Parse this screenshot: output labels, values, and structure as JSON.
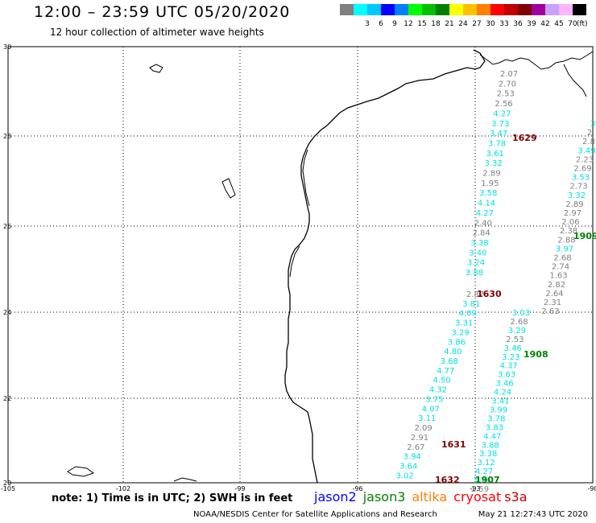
{
  "header": {
    "title": "12:00 – 23:59 UTC 05/20/2020",
    "subtitle": "12 hour collection of altimeter wave heights"
  },
  "legend": {
    "unit": "(ft)",
    "entries": [
      {
        "label": "",
        "color": "#808080"
      },
      {
        "label": "3",
        "color": "#00ffff"
      },
      {
        "label": "6",
        "color": "#00c8ff"
      },
      {
        "label": "9",
        "color": "#0000ff"
      },
      {
        "label": "12",
        "color": "#0080ff"
      },
      {
        "label": "15",
        "color": "#00ff00"
      },
      {
        "label": "18",
        "color": "#00c000"
      },
      {
        "label": "21",
        "color": "#008000"
      },
      {
        "label": "24",
        "color": "#ffff00"
      },
      {
        "label": "27",
        "color": "#ffc000"
      },
      {
        "label": "30",
        "color": "#ff8000"
      },
      {
        "label": "33",
        "color": "#ff0000"
      },
      {
        "label": "36",
        "color": "#c00000"
      },
      {
        "label": "39",
        "color": "#800000"
      },
      {
        "label": "42",
        "color": "#a000a0"
      },
      {
        "label": "45",
        "color": "#c8a0ff"
      },
      {
        "label": "70",
        "color": "#ffb4ff"
      },
      {
        "label": "",
        "color": "#000000"
      }
    ]
  },
  "map": {
    "lat_labels": [
      "30",
      "28",
      "26",
      "24",
      "22",
      "20"
    ],
    "lon_labels": [
      "-105",
      "-102",
      "-99",
      "-96",
      "-93",
      "-90"
    ]
  },
  "tracks": [
    {
      "time": "1629",
      "time_color": "#800000",
      "points": [
        {
          "v": "2.07",
          "c": "#808080"
        },
        {
          "v": "2.70",
          "c": "#808080"
        },
        {
          "v": "2.53",
          "c": "#808080"
        },
        {
          "v": "2.56",
          "c": "#808080"
        },
        {
          "v": "4.27",
          "c": "#00e0e0"
        },
        {
          "v": "3.73",
          "c": "#00e0e0"
        },
        {
          "v": "3.47",
          "c": "#00e0e0"
        },
        {
          "v": "3.78",
          "c": "#00e0e0"
        },
        {
          "v": "3.61",
          "c": "#00e0e0"
        },
        {
          "v": "3.32",
          "c": "#00e0e0"
        },
        {
          "v": "2.89",
          "c": "#808080"
        },
        {
          "v": "1.95",
          "c": "#808080"
        },
        {
          "v": "3.58",
          "c": "#00e0e0"
        },
        {
          "v": "4.14",
          "c": "#00e0e0"
        },
        {
          "v": "4.27",
          "c": "#00e0e0"
        },
        {
          "v": "2.40",
          "c": "#808080"
        },
        {
          "v": "2.84",
          "c": "#808080"
        },
        {
          "v": "3.38",
          "c": "#00e0e0"
        },
        {
          "v": "3.40",
          "c": "#00e0e0"
        },
        {
          "v": "3.24",
          "c": "#00e0e0"
        },
        {
          "v": "3.88",
          "c": "#00e0e0"
        }
      ]
    },
    {
      "time": "1630",
      "time_color": "#800000",
      "points": [
        {
          "v": "2.87",
          "c": "#808080"
        },
        {
          "v": "3.81",
          "c": "#00e0e0"
        },
        {
          "v": "4.09",
          "c": "#00e0e0"
        },
        {
          "v": "3.31",
          "c": "#00e0e0"
        },
        {
          "v": "3.29",
          "c": "#00e0e0"
        },
        {
          "v": "3.86",
          "c": "#00e0e0"
        },
        {
          "v": "4.80",
          "c": "#00e0e0"
        },
        {
          "v": "3.68",
          "c": "#00e0e0"
        },
        {
          "v": "4.77",
          "c": "#00e0e0"
        },
        {
          "v": "4.50",
          "c": "#00e0e0"
        },
        {
          "v": "4.32",
          "c": "#00e0e0"
        },
        {
          "v": "3.75",
          "c": "#00e0e0"
        },
        {
          "v": "4.07",
          "c": "#00e0e0"
        },
        {
          "v": "3.11",
          "c": "#00e0e0"
        },
        {
          "v": "2.09",
          "c": "#808080"
        },
        {
          "v": "2.91",
          "c": "#808080"
        },
        {
          "v": "2.67",
          "c": "#808080"
        },
        {
          "v": "3.94",
          "c": "#00e0e0"
        },
        {
          "v": "3.64",
          "c": "#00e0e0"
        },
        {
          "v": "3.02",
          "c": "#00e0e0"
        }
      ]
    },
    {
      "time": "1909",
      "time_color": "#008000",
      "points": [
        {
          "v": "3",
          "c": "#00e0e0"
        },
        {
          "v": "2.",
          "c": "#808080"
        },
        {
          "v": "2.8",
          "c": "#808080"
        },
        {
          "v": "3.49",
          "c": "#00e0e0"
        },
        {
          "v": "2.23",
          "c": "#808080"
        },
        {
          "v": "2.69",
          "c": "#808080"
        },
        {
          "v": "3.53",
          "c": "#00e0e0"
        },
        {
          "v": "2.73",
          "c": "#808080"
        },
        {
          "v": "3.32",
          "c": "#00e0e0"
        },
        {
          "v": "2.89",
          "c": "#808080"
        },
        {
          "v": "2.97",
          "c": "#808080"
        },
        {
          "v": "2.06",
          "c": "#808080"
        },
        {
          "v": "2.38",
          "c": "#808080"
        },
        {
          "v": "2.88",
          "c": "#808080"
        },
        {
          "v": "3.97",
          "c": "#00e0e0"
        },
        {
          "v": "2.68",
          "c": "#808080"
        },
        {
          "v": "2.74",
          "c": "#808080"
        },
        {
          "v": "1.63",
          "c": "#808080"
        },
        {
          "v": "2.82",
          "c": "#808080"
        },
        {
          "v": "2.64",
          "c": "#808080"
        },
        {
          "v": "2.31",
          "c": "#808080"
        },
        {
          "v": "2.63",
          "c": "#808080"
        }
      ]
    },
    {
      "time": "1908",
      "time_color": "#008000",
      "points": [
        {
          "v": "3.03",
          "c": "#00e0e0"
        },
        {
          "v": "2.68",
          "c": "#808080"
        },
        {
          "v": "3.29",
          "c": "#00e0e0"
        },
        {
          "v": "2.53",
          "c": "#808080"
        },
        {
          "v": "3.46",
          "c": "#00e0e0"
        },
        {
          "v": "3.23",
          "c": "#00e0e0"
        },
        {
          "v": "4.37",
          "c": "#00e0e0"
        },
        {
          "v": "3.63",
          "c": "#00e0e0"
        },
        {
          "v": "3.46",
          "c": "#00e0e0"
        },
        {
          "v": "4.24",
          "c": "#00e0e0"
        },
        {
          "v": "3.41",
          "c": "#00e0e0"
        },
        {
          "v": "3.99",
          "c": "#00e0e0"
        },
        {
          "v": "3.78",
          "c": "#00e0e0"
        },
        {
          "v": "3.83",
          "c": "#00e0e0"
        },
        {
          "v": "4.47",
          "c": "#00e0e0"
        },
        {
          "v": "3.88",
          "c": "#00e0e0"
        },
        {
          "v": "3.38",
          "c": "#00e0e0"
        },
        {
          "v": "3.12",
          "c": "#00e0e0"
        },
        {
          "v": "4.27",
          "c": "#00e0e0"
        },
        {
          "v": "3.24",
          "c": "#00e0e0"
        },
        {
          "v": "2.59",
          "c": "#808080"
        }
      ]
    }
  ],
  "extra_labels": [
    {
      "text": "1631",
      "color": "#800000"
    },
    {
      "text": "1632",
      "color": "#800000"
    },
    {
      "text": "1907",
      "color": "#008000"
    }
  ],
  "note": "note: 1) Time is in UTC; 2) SWH is in feet",
  "satellites": [
    {
      "name": "jason2",
      "color": "#0000ff"
    },
    {
      "name": "jason3",
      "color": "#008000"
    },
    {
      "name": "altika",
      "color": "#ff8000"
    },
    {
      "name": "cryosat",
      "color": "#ff0000"
    },
    {
      "name": "s3a",
      "color": "#c00000"
    }
  ],
  "footer": {
    "credit": "NOAA/NESDIS Center for Satellite Applications and Research",
    "timestamp": "May 21 12:27:43 UTC 2020"
  }
}
